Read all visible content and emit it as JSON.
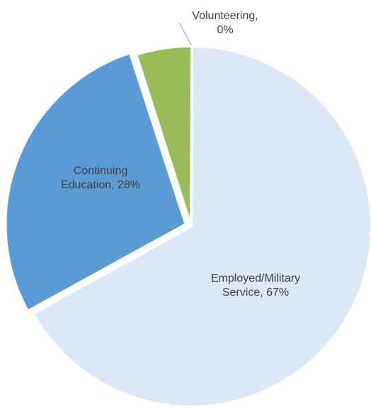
{
  "chart_data": {
    "type": "pie",
    "title": "",
    "slices": [
      {
        "name": "Employed/Military Service",
        "value": 67,
        "color": "#DCE8F6",
        "label_lines": [
          "Employed/Military",
          "Service, 67%"
        ]
      },
      {
        "name": "Continuing Education",
        "value": 28,
        "color": "#5B9BD5",
        "label_lines": [
          "Continuing",
          "Education, 28%"
        ]
      },
      {
        "name": "Volunteering",
        "value": 0,
        "color": "#A9C7E6",
        "label_lines": [
          "Volunteering,",
          "0%"
        ]
      },
      {
        "name": "",
        "value": 5,
        "color": "#9BBB59",
        "label_lines": []
      }
    ],
    "legend": "none"
  }
}
